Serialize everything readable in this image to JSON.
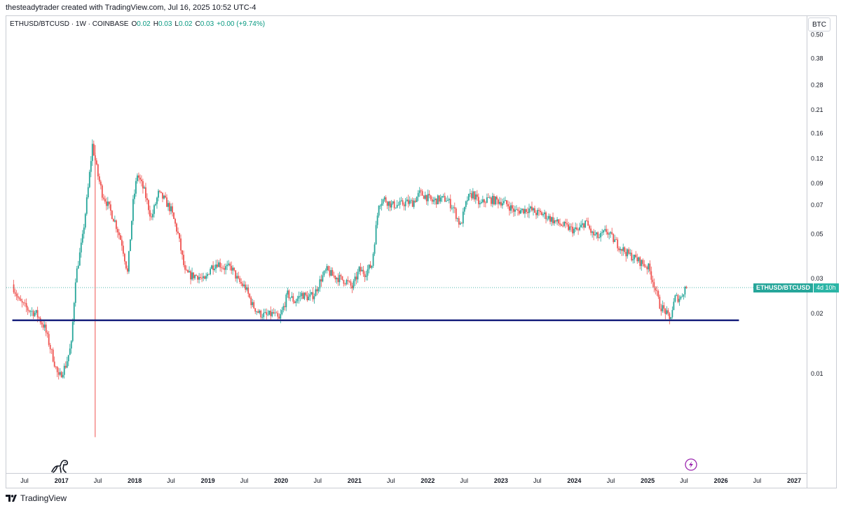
{
  "caption": "thesteadytrader created with TradingView.com, Jul 16, 2025 10:52 UTC-4",
  "legend": {
    "symbol": "ETHUSD/BTCUSD · 1W · COINBASE",
    "open_label": "O",
    "open_value": "0.02",
    "high_label": "H",
    "high_value": "0.03",
    "low_label": "L",
    "low_value": "0.02",
    "close_label": "C",
    "close_value": "0.03",
    "change": "+0.00 (+9.74%)"
  },
  "currency_button": "BTC",
  "price_tag": {
    "symbol": "ETHUSD/BTCUSD",
    "countdown": "4d 10h"
  },
  "footer_brand": "TradingView",
  "colors": {
    "up": "#26a69a",
    "down": "#ef5350",
    "support_line": "#1a237e",
    "last_price": "#26a69a"
  },
  "icons": [
    "dino-logo-icon",
    "lightning-icon",
    "tradingview-logo-icon"
  ],
  "chart_data": {
    "type": "candlestick",
    "y_scale": "log",
    "y_tick_labels": [
      "0.50",
      "0.38",
      "0.28",
      "0.21",
      "0.16",
      "0.12",
      "0.09",
      "0.07",
      "0.05",
      "0.03",
      "0.02",
      "0.01"
    ],
    "y_ticks": [
      0.5,
      0.38,
      0.28,
      0.21,
      0.16,
      0.12,
      0.09,
      0.07,
      0.05,
      0.03,
      0.02,
      0.01
    ],
    "ylim": [
      0.0032,
      0.62
    ],
    "x_tick_labels": [
      "Jul",
      "2017",
      "Jul",
      "2018",
      "Jul",
      "2019",
      "Jul",
      "2020",
      "Jul",
      "2021",
      "Jul",
      "2022",
      "Jul",
      "2023",
      "Jul",
      "2024",
      "Jul",
      "2025",
      "Jul",
      "2026",
      "Jul",
      "2027"
    ],
    "x_ticks": [
      "2016-07",
      "2017-01",
      "2017-07",
      "2018-01",
      "2018-07",
      "2019-01",
      "2019-07",
      "2020-01",
      "2020-07",
      "2021-01",
      "2021-07",
      "2022-01",
      "2022-07",
      "2023-01",
      "2023-07",
      "2024-01",
      "2024-07",
      "2025-01",
      "2025-07",
      "2026-01",
      "2026-07",
      "2027-01"
    ],
    "xlim": [
      "2016-04",
      "2027-03"
    ],
    "series_points": [
      [
        "2016-05-08",
        0.028
      ],
      [
        "2016-06-12",
        0.023
      ],
      [
        "2016-07-24",
        0.021
      ],
      [
        "2016-09-04",
        0.02
      ],
      [
        "2016-10-16",
        0.017
      ],
      [
        "2016-11-27",
        0.012
      ],
      [
        "2016-12-25",
        0.0095
      ],
      [
        "2017-01-29",
        0.011
      ],
      [
        "2017-02-26",
        0.014
      ],
      [
        "2017-03-19",
        0.03
      ],
      [
        "2017-04-23",
        0.048
      ],
      [
        "2017-05-21",
        0.085
      ],
      [
        "2017-06-11",
        0.14
      ],
      [
        "2017-07-09",
        0.098
      ],
      [
        "2017-07-30",
        0.08
      ],
      [
        "2017-08-27",
        0.07
      ],
      [
        "2017-10-01",
        0.058
      ],
      [
        "2017-11-05",
        0.045
      ],
      [
        "2017-12-03",
        0.032
      ],
      [
        "2017-12-31",
        0.072
      ],
      [
        "2018-01-21",
        0.1
      ],
      [
        "2018-02-25",
        0.082
      ],
      [
        "2018-04-01",
        0.06
      ],
      [
        "2018-05-06",
        0.08
      ],
      [
        "2018-06-03",
        0.075
      ],
      [
        "2018-07-08",
        0.066
      ],
      [
        "2018-08-12",
        0.05
      ],
      [
        "2018-09-16",
        0.032
      ],
      [
        "2018-10-14",
        0.031
      ],
      [
        "2018-11-18",
        0.031
      ],
      [
        "2018-12-23",
        0.029
      ],
      [
        "2019-01-20",
        0.034
      ],
      [
        "2019-02-24",
        0.036
      ],
      [
        "2019-03-31",
        0.034
      ],
      [
        "2019-05-05",
        0.034
      ],
      [
        "2019-06-09",
        0.029
      ],
      [
        "2019-07-14",
        0.027
      ],
      [
        "2019-08-18",
        0.022
      ],
      [
        "2019-09-22",
        0.02
      ],
      [
        "2019-10-27",
        0.0195
      ],
      [
        "2019-12-01",
        0.02
      ],
      [
        "2019-12-29",
        0.0185
      ],
      [
        "2020-02-09",
        0.025
      ],
      [
        "2020-03-15",
        0.023
      ],
      [
        "2020-04-19",
        0.025
      ],
      [
        "2020-05-24",
        0.024
      ],
      [
        "2020-06-21",
        0.025
      ],
      [
        "2020-07-26",
        0.03
      ],
      [
        "2020-08-23",
        0.033
      ],
      [
        "2020-09-20",
        0.031
      ],
      [
        "2020-10-25",
        0.03
      ],
      [
        "2020-11-29",
        0.029
      ],
      [
        "2020-12-27",
        0.027
      ],
      [
        "2021-01-31",
        0.033
      ],
      [
        "2021-02-28",
        0.032
      ],
      [
        "2021-04-04",
        0.035
      ],
      [
        "2021-05-09",
        0.072
      ],
      [
        "2021-06-06",
        0.075
      ],
      [
        "2021-07-11",
        0.07
      ],
      [
        "2021-08-15",
        0.07
      ],
      [
        "2021-09-19",
        0.072
      ],
      [
        "2021-10-24",
        0.072
      ],
      [
        "2021-11-28",
        0.08
      ],
      [
        "2021-12-26",
        0.078
      ],
      [
        "2022-01-30",
        0.073
      ],
      [
        "2022-03-06",
        0.075
      ],
      [
        "2022-04-10",
        0.075
      ],
      [
        "2022-05-15",
        0.068
      ],
      [
        "2022-06-19",
        0.055
      ],
      [
        "2022-07-24",
        0.075
      ],
      [
        "2022-08-21",
        0.08
      ],
      [
        "2022-09-25",
        0.07
      ],
      [
        "2022-10-30",
        0.075
      ],
      [
        "2022-12-04",
        0.074
      ],
      [
        "2023-01-08",
        0.073
      ],
      [
        "2023-02-12",
        0.07
      ],
      [
        "2023-03-19",
        0.065
      ],
      [
        "2023-04-23",
        0.066
      ],
      [
        "2023-05-28",
        0.067
      ],
      [
        "2023-07-02",
        0.064
      ],
      [
        "2023-08-06",
        0.063
      ],
      [
        "2023-09-10",
        0.06
      ],
      [
        "2023-10-15",
        0.057
      ],
      [
        "2023-11-19",
        0.055
      ],
      [
        "2023-12-24",
        0.053
      ],
      [
        "2024-01-28",
        0.052
      ],
      [
        "2024-03-03",
        0.058
      ],
      [
        "2024-04-07",
        0.05
      ],
      [
        "2024-05-12",
        0.048
      ],
      [
        "2024-06-16",
        0.052
      ],
      [
        "2024-07-21",
        0.047
      ],
      [
        "2024-08-25",
        0.043
      ],
      [
        "2024-09-29",
        0.04
      ],
      [
        "2024-11-03",
        0.038
      ],
      [
        "2024-12-08",
        0.036
      ],
      [
        "2025-01-12",
        0.034
      ],
      [
        "2025-02-09",
        0.028
      ],
      [
        "2025-03-09",
        0.022
      ],
      [
        "2025-04-06",
        0.0205
      ],
      [
        "2025-04-27",
        0.0185
      ],
      [
        "2025-05-25",
        0.024
      ],
      [
        "2025-06-22",
        0.024
      ],
      [
        "2025-07-13",
        0.027
      ]
    ],
    "last_price": 0.027,
    "support_line": {
      "start": "2016-05",
      "end": "2026-04",
      "value": 0.0185
    }
  }
}
